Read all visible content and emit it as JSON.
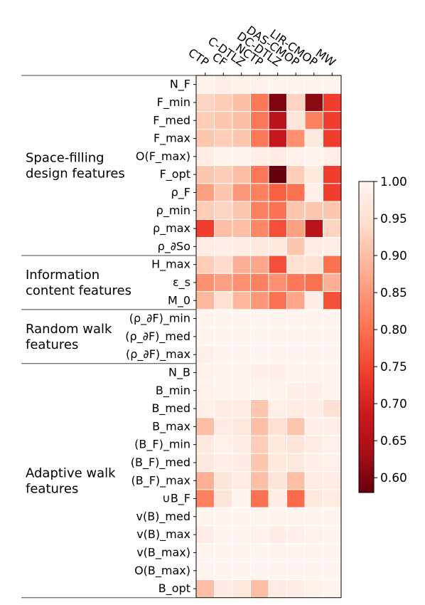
{
  "chart_data": {
    "type": "heatmap",
    "title": "",
    "xlabel": "",
    "ylabel": "",
    "columns": [
      "CTP",
      "CF",
      "C-DTLZ",
      "NCTP",
      "DC-DTLZ",
      "DAS-CMOP",
      "LIR-CMOP",
      "MW"
    ],
    "rows": [
      "N_F",
      "F_min",
      "F_med",
      "F_max",
      "O(F_max)",
      "F_opt",
      "ρ_F",
      "ρ_min",
      "ρ_max",
      "ρ_∂So",
      "H_max",
      "ε_s",
      "M_0",
      "(ρ_∂F)_min",
      "(ρ_∂F)_med",
      "(ρ_∂F)_max",
      "N_B",
      "B_min",
      "B_med",
      "B_max",
      "(B_F)_min",
      "(B_F)_med",
      "(B_F)_max",
      "∪B_F",
      "v(B)_med",
      "v(B)_max",
      "v(B_max)",
      "O(B_max)",
      "B_opt"
    ],
    "values": [
      [
        0.993,
        0.983,
        0.992,
        0.988,
        0.999,
        0.999,
        0.999,
        0.999
      ],
      [
        0.93,
        0.92,
        0.9,
        0.81,
        0.6,
        0.93,
        0.61,
        0.74
      ],
      [
        0.92,
        0.91,
        0.9,
        0.81,
        0.66,
        0.96,
        0.82,
        0.74
      ],
      [
        0.91,
        0.92,
        0.91,
        0.81,
        0.68,
        0.84,
        0.97,
        0.74
      ],
      [
        0.98,
        0.995,
        0.995,
        0.985,
        0.975,
        0.99,
        0.995,
        0.985
      ],
      [
        0.91,
        0.92,
        0.9,
        0.81,
        0.58,
        0.92,
        0.97,
        0.74
      ],
      [
        0.86,
        0.91,
        0.85,
        0.82,
        0.78,
        0.8,
        0.985,
        0.74
      ],
      [
        0.92,
        0.93,
        0.91,
        0.82,
        0.8,
        0.91,
        0.91,
        0.91
      ],
      [
        0.74,
        0.9,
        0.9,
        0.83,
        0.76,
        0.86,
        0.66,
        0.93
      ],
      [
        0.98,
        0.985,
        0.98,
        0.97,
        0.97,
        0.91,
        0.98,
        0.985
      ],
      [
        0.92,
        0.94,
        0.88,
        0.87,
        0.76,
        0.95,
        0.95,
        0.8
      ],
      [
        0.84,
        0.86,
        0.84,
        0.82,
        0.84,
        0.81,
        0.8,
        0.88
      ],
      [
        0.89,
        0.95,
        0.89,
        0.85,
        0.8,
        0.87,
        0.98,
        0.76
      ],
      [
        0.998,
        0.998,
        0.998,
        0.998,
        0.998,
        0.998,
        0.998,
        0.998
      ],
      [
        0.997,
        0.998,
        0.998,
        0.998,
        0.998,
        0.998,
        0.998,
        0.998
      ],
      [
        0.985,
        0.998,
        0.998,
        0.998,
        0.998,
        0.998,
        0.998,
        0.998
      ],
      [
        0.99,
        0.995,
        0.995,
        0.985,
        0.985,
        0.995,
        0.995,
        0.995
      ],
      [
        0.99,
        0.995,
        0.995,
        0.995,
        0.995,
        0.985,
        0.985,
        0.995
      ],
      [
        0.985,
        0.975,
        0.98,
        0.91,
        0.985,
        0.975,
        0.98,
        0.95
      ],
      [
        0.9,
        0.975,
        0.97,
        0.9,
        0.95,
        0.91,
        0.985,
        0.985
      ],
      [
        0.97,
        0.99,
        0.98,
        0.92,
        0.97,
        0.96,
        0.975,
        0.99
      ],
      [
        0.97,
        0.985,
        0.975,
        0.91,
        0.97,
        0.97,
        0.985,
        0.99
      ],
      [
        0.88,
        0.96,
        0.975,
        0.9,
        0.96,
        0.9,
        0.975,
        0.98
      ],
      [
        0.82,
        0.96,
        0.999,
        0.8,
        0.98,
        0.79,
        0.97,
        0.975
      ],
      [
        0.999,
        0.999,
        0.999,
        0.999,
        0.999,
        0.999,
        0.999,
        0.999
      ],
      [
        0.98,
        0.998,
        0.998,
        0.99,
        0.98,
        0.985,
        0.99,
        0.999
      ],
      [
        0.998,
        0.998,
        0.998,
        0.998,
        0.998,
        0.998,
        0.998,
        0.998
      ],
      [
        0.998,
        0.998,
        0.998,
        0.998,
        0.998,
        0.998,
        0.998,
        0.998
      ],
      [
        0.9,
        0.975,
        0.97,
        0.9,
        0.975,
        0.98,
        0.99,
        0.998
      ]
    ],
    "groups": [
      {
        "label_lines": [
          "Space-filling",
          "design features"
        ],
        "start": 0,
        "end": 9
      },
      {
        "label_lines": [
          "Information",
          "content features"
        ],
        "start": 10,
        "end": 12
      },
      {
        "label_lines": [
          "Random walk",
          "features"
        ],
        "start": 13,
        "end": 15
      },
      {
        "label_lines": [
          "Adaptive walk",
          "features"
        ],
        "start": 16,
        "end": 28
      }
    ],
    "colorbar": {
      "min": 0.58,
      "max": 1.0,
      "ticks": [
        1.0,
        0.95,
        0.9,
        0.85,
        0.8,
        0.75,
        0.7,
        0.65,
        0.6
      ],
      "tick_labels": [
        "1.00",
        "0.95",
        "0.90",
        "0.85",
        "0.80",
        "0.75",
        "0.70",
        "0.65",
        "0.60"
      ]
    },
    "colormap": "Reds",
    "grid": false
  }
}
